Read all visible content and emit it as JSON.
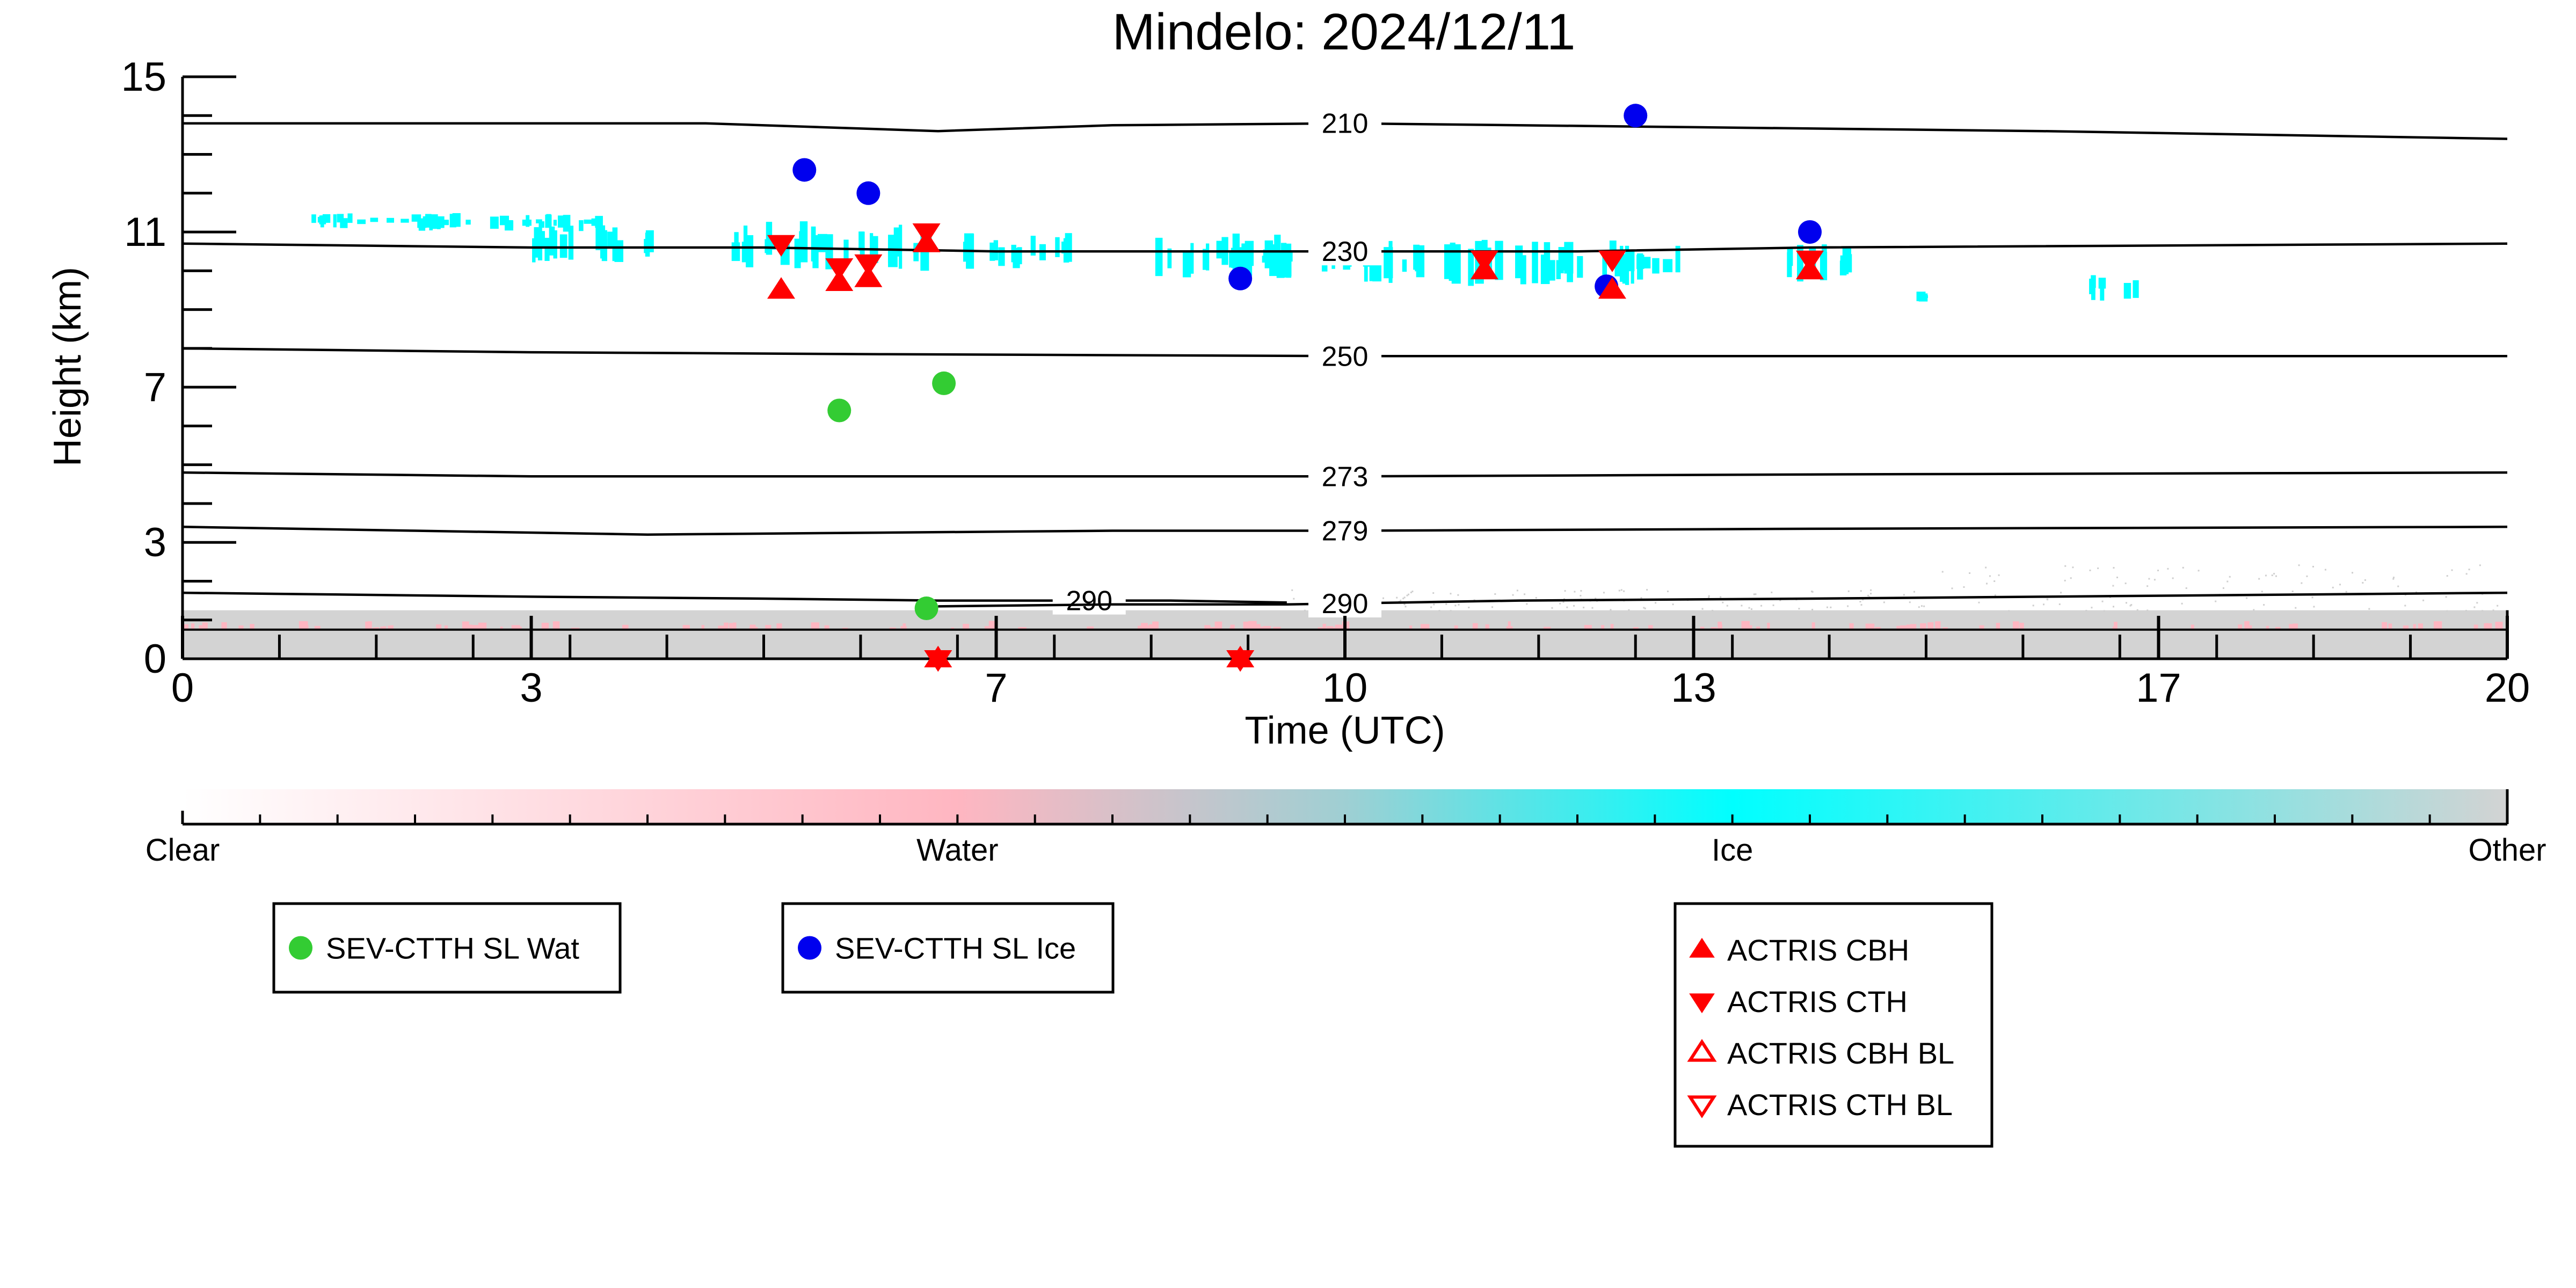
{
  "chart_data": {
    "type": "scatter",
    "title": "Mindelo: 2024/12/11",
    "xlabel": "Time (UTC)",
    "ylabel": "Height (km)",
    "xlim": [
      0,
      20
    ],
    "ylim": [
      0,
      15
    ],
    "x_ticks": [
      0,
      3,
      7,
      10,
      13,
      17,
      20
    ],
    "y_ticks": [
      0,
      3,
      7,
      11,
      15
    ],
    "isotherms": [
      {
        "label": "210",
        "label_x": 10.0,
        "points": [
          [
            0,
            13.8
          ],
          [
            2,
            13.8
          ],
          [
            4.5,
            13.8
          ],
          [
            6.5,
            13.6
          ],
          [
            8,
            13.75
          ],
          [
            10,
            13.8
          ],
          [
            13,
            13.7
          ],
          [
            16,
            13.6
          ],
          [
            20,
            13.4
          ]
        ]
      },
      {
        "label": "230",
        "label_x": 10.0,
        "points": [
          [
            0,
            10.7
          ],
          [
            3,
            10.6
          ],
          [
            5,
            10.6
          ],
          [
            7,
            10.5
          ],
          [
            10,
            10.5
          ],
          [
            12,
            10.5
          ],
          [
            14,
            10.6
          ],
          [
            20,
            10.7
          ]
        ]
      },
      {
        "label": "250",
        "label_x": 10.0,
        "points": [
          [
            0,
            8.0
          ],
          [
            3,
            7.9
          ],
          [
            6,
            7.85
          ],
          [
            10,
            7.8
          ],
          [
            14,
            7.8
          ],
          [
            20,
            7.8
          ]
        ]
      },
      {
        "label": "273",
        "label_x": 10.0,
        "points": [
          [
            0,
            4.8
          ],
          [
            3,
            4.7
          ],
          [
            6,
            4.7
          ],
          [
            10,
            4.7
          ],
          [
            14,
            4.75
          ],
          [
            20,
            4.8
          ]
        ]
      },
      {
        "label": "279",
        "label_x": 10.0,
        "points": [
          [
            0,
            3.4
          ],
          [
            2,
            3.3
          ],
          [
            4,
            3.2
          ],
          [
            6,
            3.25
          ],
          [
            8,
            3.3
          ],
          [
            10,
            3.3
          ],
          [
            14,
            3.35
          ],
          [
            20,
            3.4
          ]
        ]
      },
      {
        "label": "290",
        "label_x": 7.8,
        "points": [
          [
            0,
            1.7
          ],
          [
            3,
            1.6
          ],
          [
            5,
            1.55
          ],
          [
            6.5,
            1.5
          ],
          [
            8.5,
            1.5
          ],
          [
            9.5,
            1.45
          ]
        ]
      },
      {
        "label": "290",
        "label_x": 10.0,
        "points": [
          [
            6.5,
            1.35
          ],
          [
            8,
            1.4
          ],
          [
            9.5,
            1.4
          ],
          [
            10.5,
            1.45
          ],
          [
            11.5,
            1.5
          ],
          [
            14,
            1.55
          ],
          [
            16,
            1.6
          ],
          [
            18,
            1.65
          ],
          [
            20,
            1.7
          ]
        ]
      }
    ],
    "colorbar": {
      "labels": [
        "Clear",
        "Water",
        "Ice",
        "Other"
      ],
      "colors": [
        "#ffffff",
        "#ffb6c1",
        "#00ffff",
        "#d3d3d3"
      ]
    },
    "series": [
      {
        "name": "SEV-CTTH SL Wat",
        "marker": "circle",
        "color": "#33cc33",
        "points": [
          [
            5.65,
            6.4
          ],
          [
            6.55,
            7.1
          ],
          [
            6.4,
            1.3
          ]
        ]
      },
      {
        "name": "SEV-CTTH SL Ice",
        "marker": "circle",
        "color": "#0000ee",
        "points": [
          [
            5.35,
            12.6
          ],
          [
            5.9,
            12.0
          ],
          [
            9.1,
            9.8
          ],
          [
            12.5,
            14.0
          ],
          [
            12.25,
            9.6
          ],
          [
            14.0,
            11.0
          ]
        ]
      },
      {
        "name": "ACTRIS CBH",
        "marker": "triangle-up",
        "color": "#ff0000",
        "points": [
          [
            5.15,
            9.5
          ],
          [
            5.65,
            9.7
          ],
          [
            5.9,
            9.8
          ],
          [
            6.4,
            10.7
          ],
          [
            11.2,
            10.0
          ],
          [
            12.3,
            9.5
          ],
          [
            14.0,
            10.0
          ],
          [
            6.5,
            0.0
          ],
          [
            9.1,
            0.0
          ]
        ]
      },
      {
        "name": "ACTRIS CTH",
        "marker": "triangle-down",
        "color": "#ff0000",
        "points": [
          [
            5.15,
            10.7
          ],
          [
            5.65,
            10.1
          ],
          [
            5.9,
            10.2
          ],
          [
            6.4,
            11.0
          ],
          [
            11.2,
            10.3
          ],
          [
            12.3,
            10.3
          ],
          [
            14.0,
            10.3
          ],
          [
            6.5,
            0.0
          ],
          [
            9.1,
            0.0
          ]
        ]
      },
      {
        "name": "ACTRIS CBH BL",
        "marker": "triangle-up-open",
        "color": "#ff0000",
        "points": []
      },
      {
        "name": "ACTRIS CTH BL",
        "marker": "triangle-down-open",
        "color": "#ff0000",
        "points": []
      }
    ],
    "ice_clouds": [
      [
        1.0,
        11.1,
        1.2,
        0.4
      ],
      [
        2.0,
        11.0,
        1.6,
        0.5
      ],
      [
        3.0,
        10.2,
        1.0,
        1.0
      ],
      [
        4.7,
        10.0,
        1.7,
        1.3
      ],
      [
        6.6,
        10.0,
        1.0,
        1.0
      ],
      [
        8.3,
        9.8,
        1.2,
        1.2
      ],
      [
        9.0,
        9.8,
        0.6,
        1.0
      ],
      [
        9.8,
        9.6,
        2.2,
        1.2
      ],
      [
        12.2,
        9.6,
        0.8,
        1.2
      ],
      [
        13.8,
        9.7,
        0.6,
        1.0
      ],
      [
        16.4,
        9.2,
        0.4,
        0.8
      ],
      [
        14.9,
        9.2,
        0.1,
        0.3
      ]
    ]
  },
  "legends": [
    {
      "id": "wat",
      "items": [
        {
          "label": "SEV-CTTH SL Wat",
          "marker": "circle",
          "color": "#33cc33"
        }
      ]
    },
    {
      "id": "ice",
      "items": [
        {
          "label": "SEV-CTTH SL Ice",
          "marker": "circle",
          "color": "#0000ee"
        }
      ]
    },
    {
      "id": "actris",
      "items": [
        {
          "label": "ACTRIS CBH",
          "marker": "triangle-up",
          "color": "#ff0000"
        },
        {
          "label": "ACTRIS CTH",
          "marker": "triangle-down",
          "color": "#ff0000"
        },
        {
          "label": "ACTRIS CBH BL",
          "marker": "triangle-up-open",
          "color": "#ff0000"
        },
        {
          "label": "ACTRIS CTH BL",
          "marker": "triangle-down-open",
          "color": "#ff0000"
        }
      ]
    }
  ]
}
